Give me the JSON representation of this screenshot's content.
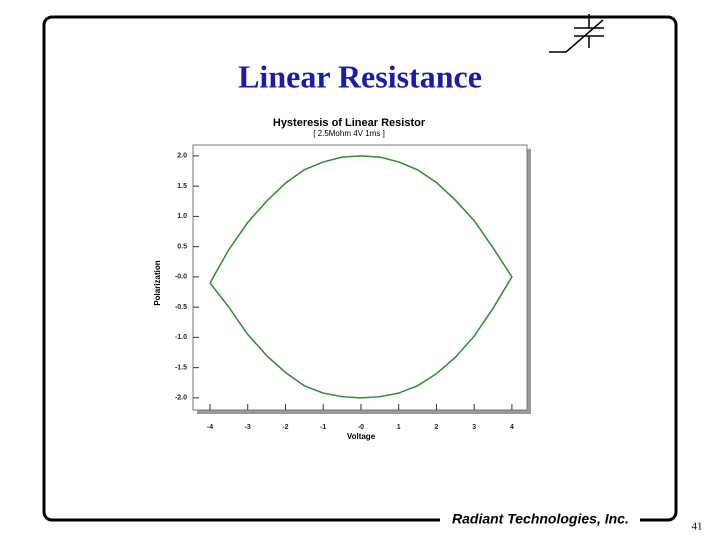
{
  "slide": {
    "title": "Linear Resistance",
    "company": "Radiant Technologies, Inc.",
    "page_number": "41"
  },
  "chart_data": {
    "type": "line",
    "title": "Hysteresis of Linear Resistor",
    "subtitle": "[ 2.5Mohm 4V 1ms ]",
    "x_label": "Voltage",
    "y_label": "Polarization",
    "color": "#2e8b2e",
    "x": [
      -4,
      -3.5,
      -3,
      -2.5,
      -2,
      -1.5,
      -1,
      -0.5,
      0,
      0.5,
      1,
      1.5,
      2,
      2.5,
      3,
      3.5,
      4,
      3.5,
      3,
      2.5,
      2,
      1.5,
      1,
      0.5,
      0,
      -0.5,
      -1,
      -1.5,
      -2,
      -2.5,
      -3,
      -3.5,
      -4
    ],
    "values": [
      -0.1,
      0.45,
      0.9,
      1.25,
      1.55,
      1.77,
      1.9,
      1.98,
      2.0,
      1.98,
      1.9,
      1.77,
      1.56,
      1.27,
      0.93,
      0.48,
      0.0,
      -0.52,
      -0.98,
      -1.33,
      -1.6,
      -1.8,
      -1.92,
      -1.98,
      -2.0,
      -1.98,
      -1.92,
      -1.8,
      -1.58,
      -1.3,
      -0.95,
      -0.5,
      -0.1
    ],
    "xlim": [
      -4.45,
      4.4
    ],
    "ylim": [
      -2.2,
      2.18
    ],
    "xticks": [
      -4,
      -3,
      -2,
      -1,
      {
        "value": 0,
        "label": "-0"
      },
      1,
      2,
      3,
      4
    ],
    "yticks": [
      {
        "value": 2,
        "label": "2.0"
      },
      1.5,
      {
        "value": 1,
        "label": "1.0"
      },
      0.5,
      {
        "value": 0,
        "label": "-0.0"
      },
      -0.5,
      {
        "value": -1,
        "label": "-1.0"
      },
      -1.5,
      {
        "value": -2,
        "label": "-2.0"
      }
    ]
  }
}
